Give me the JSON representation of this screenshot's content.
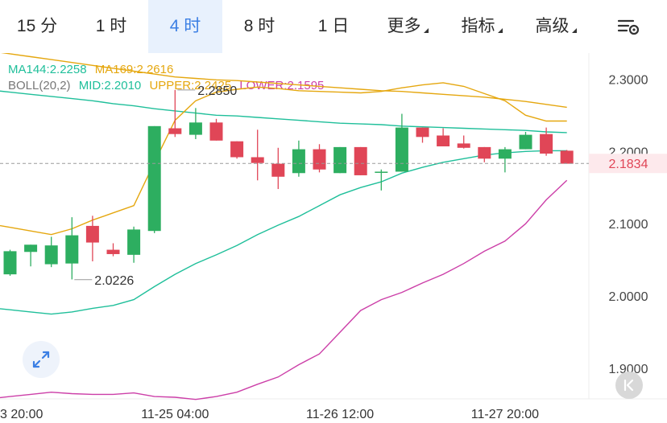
{
  "tabs": [
    {
      "label": "15 分",
      "active": false,
      "caret": false
    },
    {
      "label": "1 时",
      "active": false,
      "caret": false
    },
    {
      "label": "4 时",
      "active": true,
      "caret": false
    },
    {
      "label": "8 时",
      "active": false,
      "caret": false
    },
    {
      "label": "1 日",
      "active": false,
      "caret": false
    },
    {
      "label": "更多",
      "active": false,
      "caret": true
    },
    {
      "label": "指标",
      "active": false,
      "caret": true
    },
    {
      "label": "高级",
      "active": false,
      "caret": true
    }
  ],
  "toolbar_icon": "chart-settings-icon",
  "legend": {
    "ma144": {
      "text": "MA144:2.2258",
      "color": "#1fbf9a"
    },
    "ma169": {
      "text": "MA169:2.2616",
      "color": "#e5a70f"
    },
    "boll": {
      "text": "BOLL(20,2)",
      "color": "#777777"
    },
    "mid": {
      "text": "MID:2.2010",
      "color": "#1fbf9a"
    },
    "upper": {
      "text": "UPPER:2.2425",
      "color": "#e5a70f"
    },
    "lower": {
      "text": "LOWER:2.1595",
      "color": "#cc3fa8"
    }
  },
  "colors": {
    "up": "#2dae60",
    "down": "#e04657",
    "ma144": "#1fbf9a",
    "ma169": "#e5a70f",
    "lower": "#cc3fa8",
    "last_price_bg": "#fde9ec",
    "last_price_text": "#e04657"
  },
  "chart_data": {
    "type": "candlestick",
    "ylim": [
      1.86,
      2.336
    ],
    "y_ticks": [
      {
        "v": 2.3,
        "label": "2.3000"
      },
      {
        "v": 2.2,
        "label": "2.2000"
      },
      {
        "v": 2.1,
        "label": "2.1000"
      },
      {
        "v": 2.0,
        "label": "2.0000"
      },
      {
        "v": 1.9,
        "label": "1.9000"
      }
    ],
    "x_labels": [
      {
        "index": 0,
        "label": "3 20:00"
      },
      {
        "index": 8,
        "label": "11-25 04:00"
      },
      {
        "index": 16,
        "label": "11-26 12:00"
      },
      {
        "index": 24,
        "label": "11-27 20:00"
      }
    ],
    "candles": [
      {
        "o": 2.03,
        "h": 2.064,
        "l": 2.028,
        "c": 2.062
      },
      {
        "o": 2.061,
        "h": 2.071,
        "l": 2.041,
        "c": 2.071
      },
      {
        "o": 2.044,
        "h": 2.082,
        "l": 2.04,
        "c": 2.07
      },
      {
        "o": 2.045,
        "h": 2.109,
        "l": 2.023,
        "c": 2.084
      },
      {
        "o": 2.097,
        "h": 2.111,
        "l": 2.048,
        "c": 2.074
      },
      {
        "o": 2.064,
        "h": 2.073,
        "l": 2.055,
        "c": 2.058
      },
      {
        "o": 2.057,
        "h": 2.096,
        "l": 2.046,
        "c": 2.092
      },
      {
        "o": 2.09,
        "h": 2.235,
        "l": 2.087,
        "c": 2.235
      },
      {
        "o": 2.232,
        "h": 2.285,
        "l": 2.22,
        "c": 2.224
      },
      {
        "o": 2.223,
        "h": 2.26,
        "l": 2.217,
        "c": 2.24
      },
      {
        "o": 2.24,
        "h": 2.245,
        "l": 2.215,
        "c": 2.215
      },
      {
        "o": 2.214,
        "h": 2.214,
        "l": 2.19,
        "c": 2.192
      },
      {
        "o": 2.192,
        "h": 2.23,
        "l": 2.16,
        "c": 2.184
      },
      {
        "o": 2.183,
        "h": 2.205,
        "l": 2.148,
        "c": 2.165
      },
      {
        "o": 2.17,
        "h": 2.215,
        "l": 2.165,
        "c": 2.203
      },
      {
        "o": 2.203,
        "h": 2.21,
        "l": 2.171,
        "c": 2.175
      },
      {
        "o": 2.17,
        "h": 2.206,
        "l": 2.17,
        "c": 2.206
      },
      {
        "o": 2.206,
        "h": 2.206,
        "l": 2.167,
        "c": 2.167
      },
      {
        "o": 2.171,
        "h": 2.175,
        "l": 2.146,
        "c": 2.172
      },
      {
        "o": 2.172,
        "h": 2.252,
        "l": 2.172,
        "c": 2.233
      },
      {
        "o": 2.233,
        "h": 2.233,
        "l": 2.212,
        "c": 2.22
      },
      {
        "o": 2.222,
        "h": 2.232,
        "l": 2.207,
        "c": 2.207
      },
      {
        "o": 2.211,
        "h": 2.222,
        "l": 2.204,
        "c": 2.205
      },
      {
        "o": 2.206,
        "h": 2.206,
        "l": 2.185,
        "c": 2.19
      },
      {
        "o": 2.19,
        "h": 2.206,
        "l": 2.171,
        "c": 2.203
      },
      {
        "o": 2.203,
        "h": 2.227,
        "l": 2.203,
        "c": 2.223
      },
      {
        "o": 2.224,
        "h": 2.233,
        "l": 2.194,
        "c": 2.197
      },
      {
        "o": 2.201,
        "h": 2.202,
        "l": 2.183,
        "c": 2.183
      }
    ],
    "series": [
      {
        "id": "ma169",
        "values": [
          2.335,
          2.331,
          2.327,
          2.323,
          2.319,
          2.315,
          2.311,
          2.307,
          2.303,
          2.301,
          2.299,
          2.298,
          2.296,
          2.294,
          2.292,
          2.29,
          2.288,
          2.286,
          2.284,
          2.283,
          2.281,
          2.279,
          2.277,
          2.275,
          2.272,
          2.269,
          2.265,
          2.261
        ]
      },
      {
        "id": "ma144",
        "values": [
          2.282,
          2.279,
          2.276,
          2.273,
          2.27,
          2.266,
          2.263,
          2.259,
          2.256,
          2.253,
          2.25,
          2.249,
          2.247,
          2.245,
          2.243,
          2.241,
          2.239,
          2.238,
          2.237,
          2.235,
          2.234,
          2.233,
          2.232,
          2.231,
          2.23,
          2.229,
          2.227,
          2.226
        ]
      },
      {
        "id": "upper",
        "values": [
          2.095,
          2.09,
          2.085,
          2.093,
          2.105,
          2.115,
          2.125,
          2.185,
          2.243,
          2.27,
          2.282,
          2.286,
          2.289,
          2.287,
          2.284,
          2.283,
          2.282,
          2.281,
          2.283,
          2.288,
          2.292,
          2.295,
          2.29,
          2.28,
          2.27,
          2.25,
          2.242,
          2.242
        ]
      },
      {
        "id": "mid",
        "values": [
          1.981,
          1.978,
          1.975,
          1.978,
          1.983,
          1.987,
          1.995,
          2.013,
          2.03,
          2.045,
          2.057,
          2.07,
          2.085,
          2.098,
          2.11,
          2.125,
          2.14,
          2.15,
          2.158,
          2.17,
          2.178,
          2.185,
          2.19,
          2.195,
          2.198,
          2.2,
          2.201,
          2.201
        ]
      },
      {
        "id": "lower",
        "values": [
          1.861,
          1.864,
          1.867,
          1.865,
          1.864,
          1.864,
          1.866,
          1.861,
          1.86,
          1.857,
          1.861,
          1.867,
          1.878,
          1.888,
          1.905,
          1.92,
          1.95,
          1.98,
          1.995,
          2.005,
          2.018,
          2.03,
          2.045,
          2.062,
          2.076,
          2.1,
          2.133,
          2.16
        ]
      }
    ],
    "annotations": [
      {
        "label": "2.2850",
        "index": 8,
        "value": 2.285
      },
      {
        "label": "2.0226",
        "index": 3,
        "value": 2.0226
      }
    ],
    "last_price": {
      "label": "2.1834",
      "value": 2.1834
    }
  }
}
